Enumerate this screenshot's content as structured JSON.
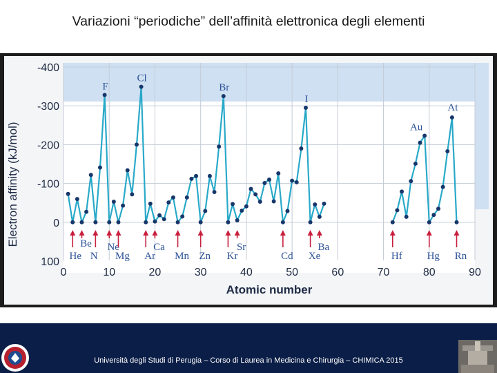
{
  "slide": {
    "title": "Variazioni “periodiche” dell’affinità elettronica degli elementi"
  },
  "footer": {
    "text": "Università degli Studi di Perugia – Corso di Laurea in Medicina e Chirurgia – CHIMICA 2015"
  },
  "colors": {
    "footer_bg": "#0b1e47",
    "plot_bg": "#ffffff",
    "band_bg": "#cfe0f3",
    "line": "#29a9c9",
    "point": "#17376b",
    "arrow": "#c8203c",
    "element_label": "#2b5296"
  },
  "chart_data": {
    "type": "line",
    "xlabel": "Atomic number",
    "ylabel": "Electron affinity (kJ/mol)",
    "xlim": [
      0,
      90
    ],
    "ylim": [
      100,
      -400
    ],
    "y_axis_inverted": true,
    "x_ticks": [
      "0",
      "10",
      "20",
      "30",
      "40",
      "50",
      "60",
      "70",
      "80",
      "90"
    ],
    "y_ticks": [
      "-400",
      "-300",
      "-200",
      "-100",
      "0",
      "100"
    ],
    "grid": true,
    "series": [
      {
        "segments": [
          [
            [
              1,
              -73
            ],
            [
              2,
              0
            ],
            [
              3,
              -60
            ],
            [
              4,
              0
            ],
            [
              5,
              -27
            ],
            [
              6,
              -122
            ],
            [
              7,
              0
            ],
            [
              8,
              -141
            ],
            [
              9,
              -328
            ],
            [
              10,
              0
            ],
            [
              11,
              -53
            ],
            [
              12,
              0
            ],
            [
              13,
              -43
            ],
            [
              14,
              -134
            ],
            [
              15,
              -72
            ],
            [
              16,
              -200
            ],
            [
              17,
              -349
            ],
            [
              18,
              0
            ],
            [
              19,
              -48
            ],
            [
              20,
              -2
            ],
            [
              21,
              -18
            ],
            [
              22,
              -8
            ],
            [
              23,
              -51
            ],
            [
              24,
              -64
            ],
            [
              25,
              0
            ],
            [
              26,
              -15
            ],
            [
              27,
              -64
            ],
            [
              28,
              -112
            ],
            [
              29,
              -119
            ],
            [
              30,
              0
            ],
            [
              31,
              -29
            ],
            [
              32,
              -119
            ],
            [
              33,
              -78
            ],
            [
              34,
              -195
            ],
            [
              35,
              -325
            ],
            [
              36,
              0
            ],
            [
              37,
              -47
            ],
            [
              38,
              -5
            ],
            [
              39,
              -30
            ],
            [
              40,
              -41
            ],
            [
              41,
              -86
            ],
            [
              42,
              -72
            ],
            [
              43,
              -53
            ],
            [
              44,
              -101
            ],
            [
              45,
              -110
            ],
            [
              46,
              -54
            ],
            [
              47,
              -126
            ],
            [
              48,
              0
            ],
            [
              49,
              -29
            ],
            [
              50,
              -107
            ],
            [
              51,
              -103
            ],
            [
              52,
              -190
            ],
            [
              53,
              -295
            ],
            [
              54,
              0
            ],
            [
              55,
              -46
            ],
            [
              56,
              -14
            ],
            [
              57,
              -48
            ]
          ],
          [
            [
              72,
              0
            ],
            [
              73,
              -31
            ],
            [
              74,
              -79
            ],
            [
              75,
              -14
            ],
            [
              76,
              -106
            ],
            [
              77,
              -151
            ],
            [
              78,
              -205
            ],
            [
              79,
              -223
            ],
            [
              80,
              0
            ],
            [
              81,
              -19
            ],
            [
              82,
              -35
            ],
            [
              83,
              -91
            ],
            [
              84,
              -183
            ],
            [
              85,
              -270
            ],
            [
              86,
              0
            ]
          ]
        ]
      }
    ],
    "element_labels": [
      {
        "symbol": "F",
        "z": 9,
        "value": -328
      },
      {
        "symbol": "Cl",
        "z": 17,
        "value": -349
      },
      {
        "symbol": "Br",
        "z": 35,
        "value": -325
      },
      {
        "symbol": "I",
        "z": 53,
        "value": -295
      },
      {
        "symbol": "Au",
        "z": 79,
        "value": -223
      },
      {
        "symbol": "At",
        "z": 85,
        "value": -270
      }
    ],
    "arrow_labels": [
      {
        "symbol": "He",
        "z": 2,
        "row": "low"
      },
      {
        "symbol": "Be",
        "z": 4,
        "row": "high"
      },
      {
        "symbol": "N",
        "z": 7,
        "row": "low"
      },
      {
        "symbol": "Ne",
        "z": 10,
        "row": "mid"
      },
      {
        "symbol": "Mg",
        "z": 12,
        "row": "low"
      },
      {
        "symbol": "Ar",
        "z": 18,
        "row": "low"
      },
      {
        "symbol": "Ca",
        "z": 20,
        "row": "mid"
      },
      {
        "symbol": "Mn",
        "z": 25,
        "row": "low"
      },
      {
        "symbol": "Zn",
        "z": 30,
        "row": "low"
      },
      {
        "symbol": "Kr",
        "z": 36,
        "row": "low"
      },
      {
        "symbol": "Sr",
        "z": 38,
        "row": "mid"
      },
      {
        "symbol": "Cd",
        "z": 48,
        "row": "low"
      },
      {
        "symbol": "Xe",
        "z": 54,
        "row": "low"
      },
      {
        "symbol": "Ba",
        "z": 56,
        "row": "mid"
      },
      {
        "symbol": "Hf",
        "z": 72,
        "row": "low"
      },
      {
        "symbol": "Hg",
        "z": 80,
        "row": "low"
      },
      {
        "symbol": "Rn",
        "z": 86,
        "row": "low"
      }
    ]
  }
}
